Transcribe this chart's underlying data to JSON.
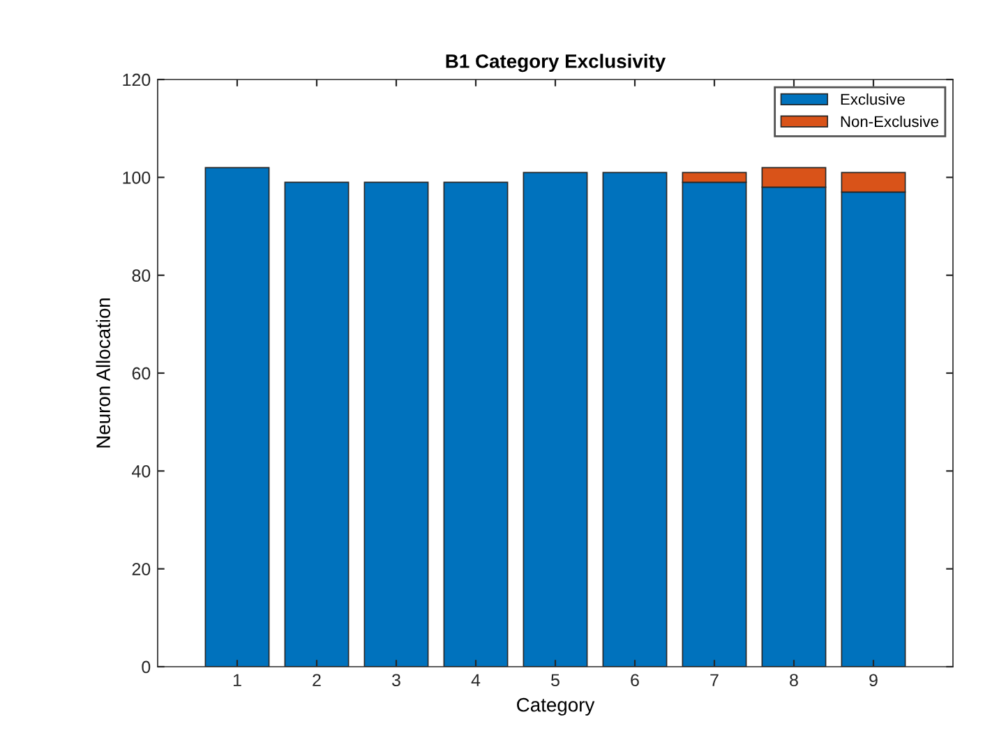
{
  "chart_data": {
    "type": "bar",
    "title": "B1 Category Exclusivity",
    "xlabel": "Category",
    "ylabel": "Neuron Allocation",
    "categories": [
      "1",
      "2",
      "3",
      "4",
      "5",
      "6",
      "7",
      "8",
      "9"
    ],
    "stacked": true,
    "series": [
      {
        "name": "Exclusive",
        "color": "#0072bd",
        "values": [
          102,
          99,
          99,
          99,
          101,
          101,
          99,
          98,
          97
        ]
      },
      {
        "name": "Non-Exclusive",
        "color": "#d95319",
        "values": [
          null,
          null,
          null,
          null,
          null,
          null,
          2,
          4,
          4
        ]
      }
    ],
    "ylim": [
      0,
      120
    ],
    "yticks": [
      0,
      20,
      40,
      60,
      80,
      100,
      120
    ],
    "legend": "top right",
    "grid": false
  }
}
